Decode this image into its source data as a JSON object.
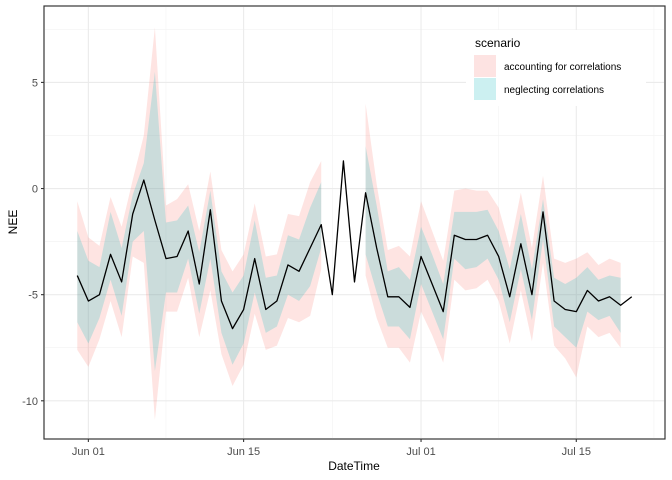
{
  "chart_data": {
    "type": "line",
    "xlabel": "DateTime",
    "ylabel": "NEE",
    "x_ticks": [
      "Jun 01",
      "Jun 15",
      "Jul 01",
      "Jul 15"
    ],
    "x_tick_dates": [
      "2020-06-01",
      "2020-06-15",
      "2020-07-01",
      "2020-07-15"
    ],
    "xlim": [
      "2020-05-28",
      "2020-07-23"
    ],
    "y_ticks": [
      5,
      0,
      -5,
      -10
    ],
    "y_tick_labels": [
      "5",
      "0",
      "-5",
      "-10"
    ],
    "ylim": [
      -11.8,
      8.6
    ],
    "grid": true,
    "legend": {
      "title": "scenario",
      "position": "top-right",
      "items": [
        {
          "label": "accounting for correlations",
          "color": "#F8766D"
        },
        {
          "label": "neglecting correlations",
          "color": "#00BFC4"
        }
      ]
    },
    "x": [
      "2020-05-31",
      "2020-06-01",
      "2020-06-02",
      "2020-06-03",
      "2020-06-04",
      "2020-06-05",
      "2020-06-06",
      "2020-06-07",
      "2020-06-08",
      "2020-06-09",
      "2020-06-10",
      "2020-06-11",
      "2020-06-12",
      "2020-06-13",
      "2020-06-14",
      "2020-06-15",
      "2020-06-16",
      "2020-06-17",
      "2020-06-18",
      "2020-06-19",
      "2020-06-20",
      "2020-06-21",
      "2020-06-22",
      "2020-06-23",
      "2020-06-24",
      "2020-06-25",
      "2020-06-26",
      "2020-06-27",
      "2020-06-28",
      "2020-06-29",
      "2020-06-30",
      "2020-07-01",
      "2020-07-02",
      "2020-07-03",
      "2020-07-04",
      "2020-07-05",
      "2020-07-06",
      "2020-07-07",
      "2020-07-08",
      "2020-07-09",
      "2020-07-10",
      "2020-07-11",
      "2020-07-12",
      "2020-07-13",
      "2020-07-14",
      "2020-07-15",
      "2020-07-16",
      "2020-07-17",
      "2020-07-18",
      "2020-07-19",
      "2020-07-20"
    ],
    "series": [
      {
        "role": "estimate",
        "color": "#000000",
        "values": [
          -4.1,
          -5.3,
          -5.0,
          -3.1,
          -4.4,
          -1.2,
          0.4,
          -1.5,
          -3.3,
          -3.2,
          -2.0,
          -4.5,
          -1.0,
          -5.3,
          -6.6,
          -5.7,
          -3.3,
          -5.7,
          -5.3,
          -3.6,
          -3.9,
          -2.8,
          -1.7,
          -5.0,
          1.3,
          -4.4,
          -0.2,
          -2.8,
          -5.1,
          -5.1,
          -5.6,
          -3.2,
          -4.5,
          -5.8,
          -2.2,
          -2.4,
          -2.4,
          -2.2,
          -3.2,
          -5.1,
          -2.6,
          -5.0,
          -1.1,
          -5.3,
          -5.7,
          -5.8,
          -4.8,
          -5.3,
          -5.1,
          -5.5,
          -5.1
        ]
      },
      {
        "name": "accounting for correlations",
        "role": "interval",
        "color": "#F8766D",
        "lower": [
          -7.6,
          -8.4,
          -7.1,
          -5.3,
          -7.0,
          -3.2,
          -3.5,
          -10.9,
          -5.8,
          -5.8,
          -4.2,
          -7.0,
          -4.8,
          -7.8,
          -9.3,
          -8.3,
          -5.9,
          -7.6,
          -7.4,
          -6.1,
          -6.3,
          -6.0,
          -3.8,
          null,
          null,
          null,
          -4.1,
          -6.1,
          -7.5,
          -7.5,
          -8.2,
          -5.8,
          -6.9,
          -8.2,
          -4.3,
          -4.8,
          -4.7,
          -4.3,
          -5.3,
          -7.3,
          -4.8,
          -7.2,
          -3.5,
          -7.4,
          -8.0,
          -8.9,
          -6.5,
          -7.0,
          -6.8,
          -7.5,
          null
        ],
        "upper": [
          -0.6,
          -2.3,
          -2.7,
          -0.4,
          -1.8,
          0.4,
          2.5,
          7.6,
          -0.8,
          -0.5,
          0.2,
          -2.0,
          0.8,
          -2.9,
          -3.9,
          -3.1,
          -0.7,
          -3.2,
          -3.1,
          -1.2,
          -1.3,
          0.3,
          1.3,
          null,
          null,
          null,
          4.0,
          0.2,
          -2.9,
          -2.7,
          -3.2,
          -0.6,
          -2.0,
          -3.4,
          -0.1,
          0.0,
          -0.1,
          -0.1,
          -0.9,
          -2.8,
          -0.2,
          -2.8,
          0.6,
          -3.3,
          -3.5,
          -3.3,
          -3.0,
          -3.6,
          -3.3,
          -3.5,
          null
        ]
      },
      {
        "name": "neglecting correlations",
        "role": "interval",
        "color": "#00BFC4",
        "lower": [
          -6.3,
          -7.3,
          -6.1,
          -4.3,
          -6.0,
          -2.5,
          -2.0,
          -8.6,
          -4.9,
          -4.9,
          -3.3,
          -5.9,
          -3.3,
          -6.8,
          -8.3,
          -7.3,
          -4.9,
          -6.8,
          -6.5,
          -5.0,
          -5.3,
          -4.6,
          -2.8,
          null,
          null,
          null,
          -3.1,
          -4.9,
          -6.5,
          -6.5,
          -7.1,
          -4.5,
          -5.8,
          -7.1,
          -3.3,
          -3.8,
          -3.7,
          -3.3,
          -4.3,
          -6.3,
          -3.8,
          -6.2,
          -2.4,
          -6.5,
          -7.0,
          -7.5,
          -5.8,
          -6.2,
          -6.0,
          -6.8,
          null
        ],
        "upper": [
          -2.0,
          -3.4,
          -3.7,
          -1.1,
          -2.8,
          -0.3,
          1.2,
          5.5,
          -1.6,
          -1.5,
          -0.8,
          -3.0,
          -0.1,
          -3.9,
          -4.9,
          -4.1,
          -1.5,
          -4.2,
          -4.1,
          -2.2,
          -2.4,
          -0.9,
          0.3,
          null,
          null,
          null,
          2.0,
          -0.8,
          -3.9,
          -3.7,
          -4.3,
          -1.8,
          -3.1,
          -4.5,
          -1.1,
          -1.1,
          -1.1,
          -1.0,
          -2.0,
          -3.8,
          -1.2,
          -3.8,
          -0.5,
          -4.2,
          -4.5,
          -4.2,
          -3.7,
          -4.3,
          -4.1,
          -4.2,
          null
        ]
      }
    ]
  }
}
